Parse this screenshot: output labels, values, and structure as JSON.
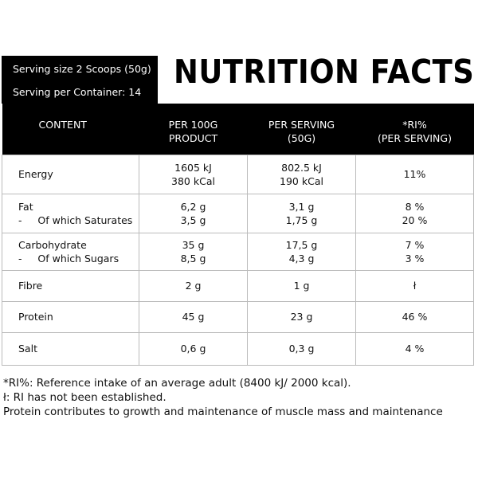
{
  "serving": {
    "size": "Serving size 2 Scoops (50g)",
    "per_container": "Serving per Container: 14"
  },
  "title": "NUTRITION FACTS",
  "columns": {
    "content": "CONTENT",
    "per100_l1": "PER 100G",
    "per100_l2": "PRODUCT",
    "perserving_l1": "PER SERVING",
    "perserving_l2": "(50G)",
    "ri_l1": "*RI%",
    "ri_l2": "(PER SERVING)"
  },
  "rows": {
    "energy": {
      "label": "Energy",
      "per100_a": "1605 kJ",
      "per100_b": "380 kCal",
      "serv_a": "802.5 kJ",
      "serv_b": "190 kCal",
      "ri": "11%"
    },
    "fat": {
      "label": "Fat",
      "sub_label": "-     Of which Saturates",
      "per100_a": "6,2 g",
      "per100_b": "3,5 g",
      "serv_a": "3,1 g",
      "serv_b": "1,75 g",
      "ri_a": "8 %",
      "ri_b": "20 %"
    },
    "carbohydrate": {
      "label": "Carbohydrate",
      "sub_label": "-     Of which Sugars",
      "per100_a": "35 g",
      "per100_b": "8,5 g",
      "serv_a": "17,5 g",
      "serv_b": "4,3 g",
      "ri_a": "7 %",
      "ri_b": "3 %"
    },
    "fibre": {
      "label": "Fibre",
      "per100": "2 g",
      "serv": "1 g",
      "ri": "ł"
    },
    "protein": {
      "label": "Protein",
      "per100": "45 g",
      "serv": "23 g",
      "ri": "46 %"
    },
    "salt": {
      "label": "Salt",
      "per100": "0,6 g",
      "serv": "0,3 g",
      "ri": "4 %"
    }
  },
  "notes": {
    "line1": "*RI%: Reference intake of an average adult (8400 kJ/ 2000 kcal).",
    "line2": "ł: RI has not been established.",
    "line3": "Protein contributes to growth and maintenance of muscle mass and maintenance"
  }
}
